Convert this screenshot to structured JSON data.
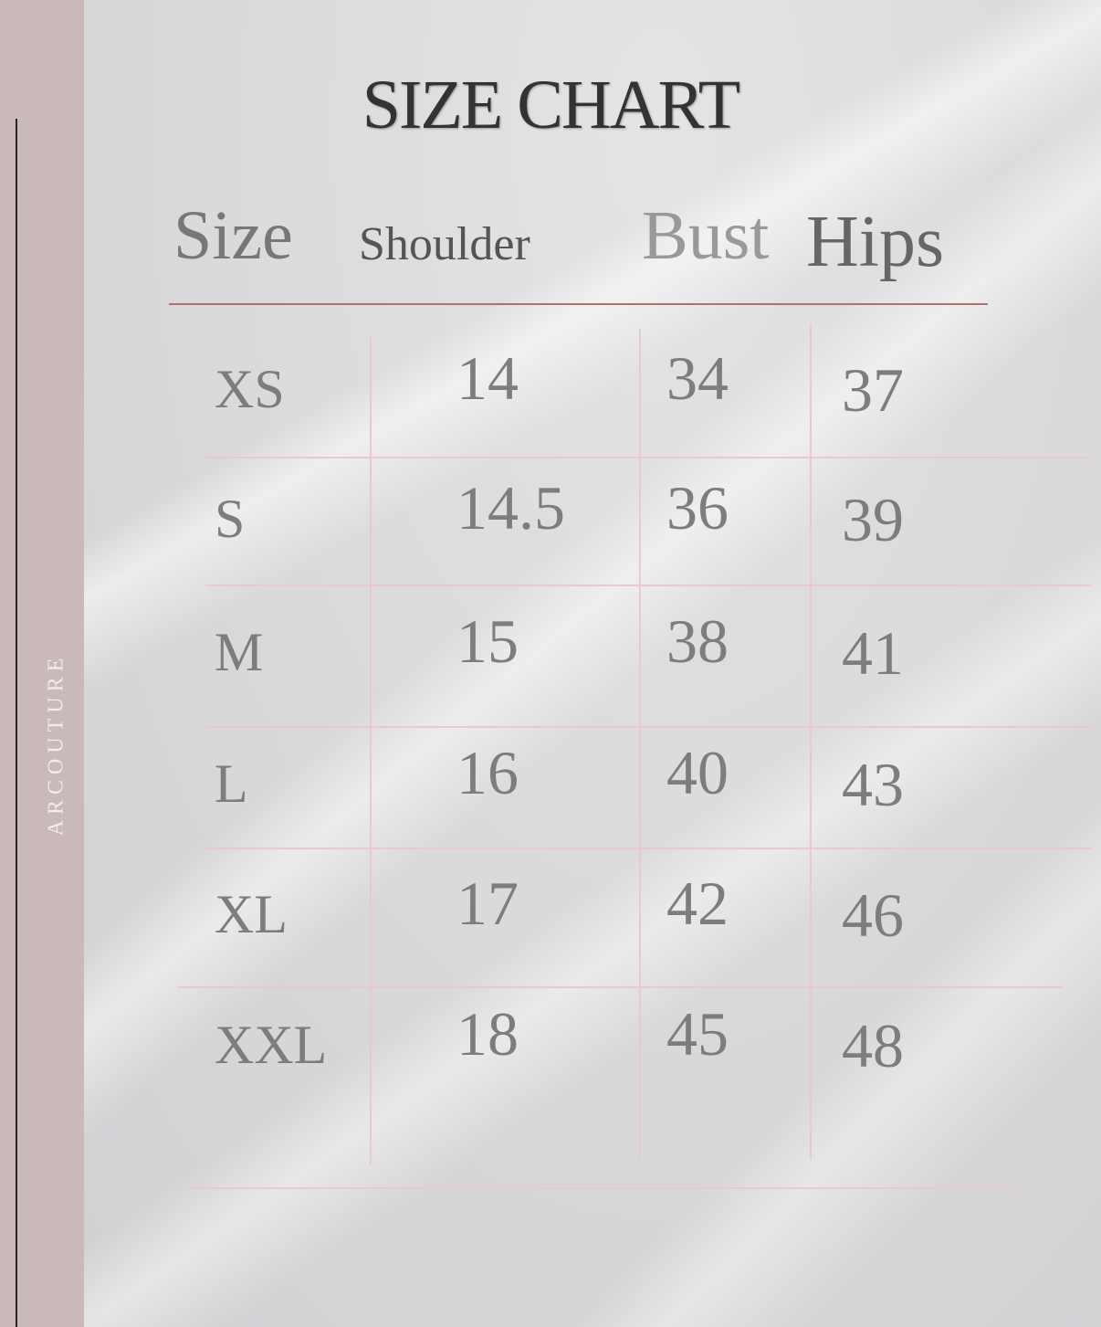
{
  "brand": "ARCOUTURE",
  "title": "SIZE CHART",
  "headers": [
    "Size",
    "Shoulder",
    "Bust",
    "Hips"
  ],
  "rows": [
    {
      "size": "XS",
      "shoulder": "14",
      "bust": "34",
      "hips": "37"
    },
    {
      "size": "S",
      "shoulder": "14.5",
      "bust": "36",
      "hips": "39"
    },
    {
      "size": "M",
      "shoulder": "15",
      "bust": "38",
      "hips": "41"
    },
    {
      "size": "L",
      "shoulder": "16",
      "bust": "40",
      "hips": "43"
    },
    {
      "size": "XL",
      "shoulder": "17",
      "bust": "42",
      "hips": "46"
    },
    {
      "size": "XXL",
      "shoulder": "18",
      "bust": "45",
      "hips": "48"
    }
  ],
  "colors": {
    "strip": "#c9b9bb",
    "rule": "#b07070",
    "grid": "#eac9cb"
  }
}
